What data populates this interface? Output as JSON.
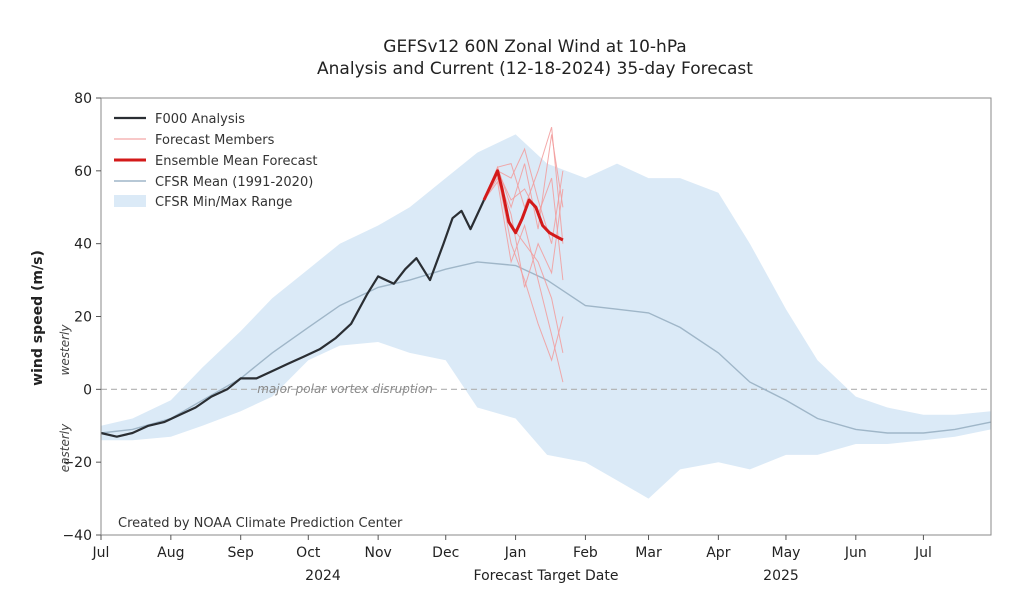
{
  "chart_data": {
    "type": "line",
    "title": "GEFSv12 60N Zonal Wind at 10-hPa",
    "subtitle": "Analysis and Current (12-18-2024) 35-day Forecast",
    "ylabel": "wind speed (m/s)",
    "ylabel_pos": "westerly",
    "ylabel_neg": "easterly",
    "xlabel": "Forecast Target Date",
    "year_labels": [
      "2024",
      "2025"
    ],
    "ylim": [
      -40,
      80
    ],
    "yticks": [
      "80",
      "60",
      "40",
      "20",
      "0",
      "−20",
      "−40"
    ],
    "ytick_values": [
      80,
      60,
      40,
      20,
      0,
      -20,
      -40
    ],
    "xlim": [
      "2024-07-01",
      "2025-07-31"
    ],
    "xticks": [
      "Jul",
      "Aug",
      "Sep",
      "Oct",
      "Nov",
      "Dec",
      "Jan",
      "Feb",
      "Mar",
      "Apr",
      "May",
      "Jun",
      "Jul"
    ],
    "xtick_dates": [
      "2024-07-01",
      "2024-08-01",
      "2024-09-01",
      "2024-10-01",
      "2024-11-01",
      "2024-12-01",
      "2025-01-01",
      "2025-02-01",
      "2025-03-01",
      "2025-04-01",
      "2025-05-01",
      "2025-06-01",
      "2025-07-01"
    ],
    "grid": false,
    "legend_placement": "top-left",
    "legend": [
      {
        "label": "F000 Analysis",
        "color": "#2a2e33",
        "kind": "line"
      },
      {
        "label": "Forecast Members",
        "color": "#f4a6a6",
        "kind": "line"
      },
      {
        "label": "Ensemble Mean Forecast",
        "color": "#d31a1a",
        "kind": "line"
      },
      {
        "label": "CFSR Mean (1991-2020)",
        "color": "#9fb6c8",
        "kind": "line"
      },
      {
        "label": "CFSR Min/Max Range",
        "color": "#dbeaf7",
        "kind": "patch"
      }
    ],
    "annotation_zero": "major polar vortex disruption",
    "credit": "Created by NOAA Climate Prediction Center",
    "colors": {
      "analysis": "#2a2e33",
      "members": "#f29b9b",
      "ensemble_mean": "#d31a1a",
      "cfsr_mean": "#9fb6c8",
      "cfsr_range": "#dbeaf7",
      "zero_line": "#b0b0b0"
    },
    "series": [
      {
        "name": "F000 Analysis",
        "x": [
          "2024-07-01",
          "2024-07-08",
          "2024-07-15",
          "2024-07-22",
          "2024-07-29",
          "2024-08-05",
          "2024-08-12",
          "2024-08-19",
          "2024-08-26",
          "2024-09-01",
          "2024-09-08",
          "2024-09-15",
          "2024-09-22",
          "2024-09-29",
          "2024-10-06",
          "2024-10-13",
          "2024-10-20",
          "2024-10-27",
          "2024-11-01",
          "2024-11-08",
          "2024-11-13",
          "2024-11-18",
          "2024-11-24",
          "2024-11-30",
          "2024-12-04",
          "2024-12-08",
          "2024-12-12",
          "2024-12-18"
        ],
        "y": [
          -12,
          -13,
          -12,
          -10,
          -9,
          -7,
          -5,
          -2,
          0,
          3,
          3,
          5,
          7,
          9,
          11,
          14,
          18,
          26,
          31,
          29,
          33,
          36,
          30,
          40,
          47,
          49,
          44,
          52
        ]
      },
      {
        "name": "Ensemble Mean Forecast",
        "x": [
          "2024-12-18",
          "2024-12-21",
          "2024-12-24",
          "2024-12-26",
          "2024-12-29",
          "2025-01-01",
          "2025-01-04",
          "2025-01-07",
          "2025-01-10",
          "2025-01-13",
          "2025-01-16",
          "2025-01-19",
          "2025-01-22"
        ],
        "y": [
          52,
          56,
          60,
          55,
          46,
          43,
          47,
          52,
          50,
          45,
          43,
          42,
          41
        ]
      },
      {
        "name": "CFSR Mean (1991-2020)",
        "x": [
          "2024-07-01",
          "2024-07-15",
          "2024-08-01",
          "2024-08-15",
          "2024-09-01",
          "2024-09-15",
          "2024-10-01",
          "2024-10-15",
          "2024-11-01",
          "2024-11-15",
          "2024-12-01",
          "2024-12-15",
          "2025-01-01",
          "2025-01-15",
          "2025-02-01",
          "2025-02-15",
          "2025-03-01",
          "2025-03-15",
          "2025-04-01",
          "2025-04-15",
          "2025-05-01",
          "2025-05-15",
          "2025-06-01",
          "2025-06-15",
          "2025-07-01",
          "2025-07-15",
          "2025-07-31"
        ],
        "y": [
          -12,
          -11,
          -8,
          -3,
          3,
          10,
          17,
          23,
          28,
          30,
          33,
          35,
          34,
          30,
          23,
          22,
          21,
          17,
          10,
          2,
          -3,
          -8,
          -11,
          -12,
          -12,
          -11,
          -9
        ]
      }
    ],
    "members": [
      {
        "x": [
          "2024-12-18",
          "2024-12-24",
          "2024-12-30",
          "2025-01-05",
          "2025-01-11",
          "2025-01-17",
          "2025-01-22"
        ],
        "y": [
          52,
          61,
          50,
          62,
          44,
          70,
          50
        ]
      },
      {
        "x": [
          "2024-12-18",
          "2024-12-24",
          "2024-12-30",
          "2025-01-05",
          "2025-01-11",
          "2025-01-17",
          "2025-01-22"
        ],
        "y": [
          52,
          59,
          40,
          30,
          18,
          8,
          20
        ]
      },
      {
        "x": [
          "2024-12-18",
          "2024-12-24",
          "2024-12-30",
          "2025-01-05",
          "2025-01-11",
          "2025-01-17",
          "2025-01-22"
        ],
        "y": [
          52,
          60,
          58,
          66,
          52,
          40,
          60
        ]
      },
      {
        "x": [
          "2024-12-18",
          "2024-12-24",
          "2024-12-30",
          "2025-01-05",
          "2025-01-11",
          "2025-01-17",
          "2025-01-22"
        ],
        "y": [
          52,
          58,
          45,
          40,
          35,
          25,
          10
        ]
      },
      {
        "x": [
          "2024-12-18",
          "2024-12-24",
          "2024-12-30",
          "2025-01-05",
          "2025-01-11",
          "2025-01-17",
          "2025-01-22"
        ],
        "y": [
          52,
          61,
          62,
          50,
          60,
          72,
          40
        ]
      },
      {
        "x": [
          "2024-12-18",
          "2024-12-24",
          "2024-12-30",
          "2025-01-05",
          "2025-01-11",
          "2025-01-17",
          "2025-01-22"
        ],
        "y": [
          52,
          57,
          35,
          45,
          30,
          15,
          2
        ]
      },
      {
        "x": [
          "2024-12-18",
          "2024-12-24",
          "2024-12-30",
          "2025-01-05",
          "2025-01-11",
          "2025-01-17",
          "2025-01-22"
        ],
        "y": [
          52,
          60,
          52,
          55,
          48,
          58,
          30
        ]
      },
      {
        "x": [
          "2024-12-18",
          "2024-12-24",
          "2024-12-30",
          "2025-01-05",
          "2025-01-11",
          "2025-01-17",
          "2025-01-22"
        ],
        "y": [
          52,
          59,
          48,
          28,
          40,
          32,
          55
        ]
      }
    ],
    "cfsr_range": {
      "x": [
        "2024-07-01",
        "2024-07-15",
        "2024-08-01",
        "2024-08-15",
        "2024-09-01",
        "2024-09-15",
        "2024-10-01",
        "2024-10-15",
        "2024-11-01",
        "2024-11-15",
        "2024-12-01",
        "2024-12-15",
        "2025-01-01",
        "2025-01-15",
        "2025-02-01",
        "2025-02-15",
        "2025-03-01",
        "2025-03-15",
        "2025-04-01",
        "2025-04-15",
        "2025-05-01",
        "2025-05-15",
        "2025-06-01",
        "2025-06-15",
        "2025-07-01",
        "2025-07-15",
        "2025-07-31"
      ],
      "min": [
        -14,
        -14,
        -13,
        -10,
        -6,
        -2,
        8,
        12,
        13,
        10,
        8,
        -5,
        -8,
        -18,
        -20,
        -25,
        -30,
        -22,
        -20,
        -22,
        -18,
        -18,
        -15,
        -15,
        -14,
        -13,
        -11
      ],
      "max": [
        -10,
        -8,
        -3,
        6,
        16,
        25,
        33,
        40,
        45,
        50,
        58,
        65,
        70,
        62,
        58,
        62,
        58,
        58,
        54,
        40,
        22,
        8,
        -2,
        -5,
        -7,
        -7,
        -6
      ]
    }
  }
}
